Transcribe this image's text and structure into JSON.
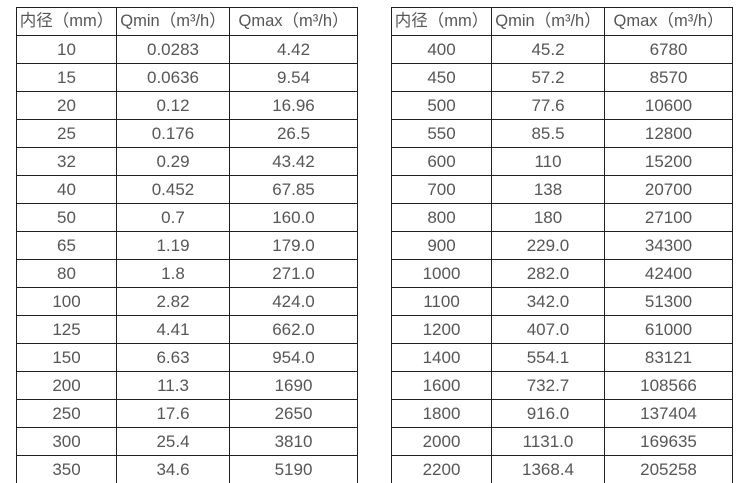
{
  "page": {
    "background_color": "#ffffff",
    "text_color": "#565656",
    "border_color": "#1f1f1f",
    "description": "Flow meter inner diameter vs minimum and maximum flow rate specification tables"
  },
  "tables": [
    {
      "name": "diameter-flow-table-left",
      "headers": [
        "内径（mm）",
        "Qmin（m³/h）",
        "Qmax（m³/h）"
      ],
      "rows": [
        [
          "10",
          "0.0283",
          "4.42"
        ],
        [
          "15",
          "0.0636",
          "9.54"
        ],
        [
          "20",
          "0.12",
          "16.96"
        ],
        [
          "25",
          "0.176",
          "26.5"
        ],
        [
          "32",
          "0.29",
          "43.42"
        ],
        [
          "40",
          "0.452",
          "67.85"
        ],
        [
          "50",
          "0.7",
          "160.0"
        ],
        [
          "65",
          "1.19",
          "179.0"
        ],
        [
          "80",
          "1.8",
          "271.0"
        ],
        [
          "100",
          "2.82",
          "424.0"
        ],
        [
          "125",
          "4.41",
          "662.0"
        ],
        [
          "150",
          "6.63",
          "954.0"
        ],
        [
          "200",
          "11.3",
          "1690"
        ],
        [
          "250",
          "17.6",
          "2650"
        ],
        [
          "300",
          "25.4",
          "3810"
        ],
        [
          "350",
          "34.6",
          "5190"
        ]
      ]
    },
    {
      "name": "diameter-flow-table-right",
      "headers": [
        "内径（mm）",
        "Qmin（m³/h）",
        "Qmax（m³/h）"
      ],
      "rows": [
        [
          "400",
          "45.2",
          "6780"
        ],
        [
          "450",
          "57.2",
          "8570"
        ],
        [
          "500",
          "77.6",
          "10600"
        ],
        [
          "550",
          "85.5",
          "12800"
        ],
        [
          "600",
          "110",
          "15200"
        ],
        [
          "700",
          "138",
          "20700"
        ],
        [
          "800",
          "180",
          "27100"
        ],
        [
          "900",
          "229.0",
          "34300"
        ],
        [
          "1000",
          "282.0",
          "42400"
        ],
        [
          "1100",
          "342.0",
          "51300"
        ],
        [
          "1200",
          "407.0",
          "61000"
        ],
        [
          "1400",
          "554.1",
          "83121"
        ],
        [
          "1600",
          "732.7",
          "108566"
        ],
        [
          "1800",
          "916.0",
          "137404"
        ],
        [
          "2000",
          "1131.0",
          "169635"
        ],
        [
          "2200",
          "1368.4",
          "205258"
        ]
      ]
    }
  ]
}
